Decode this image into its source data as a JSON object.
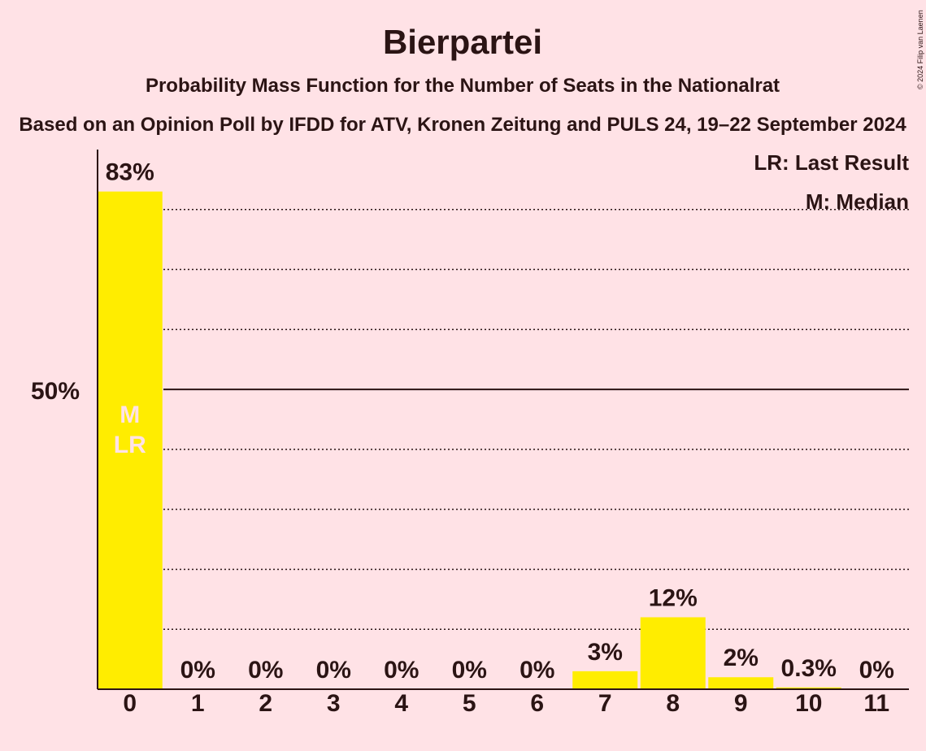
{
  "chart_data": {
    "type": "bar",
    "title": "Bierpartei",
    "subtitle": "Probability Mass Function for the Number of Seats in the Nationalrat",
    "subtitle2": "Based on an Opinion Poll by IFDD for ATV, Kronen Zeitung and PULS 24, 19–22 September 2024",
    "copyright": "© 2024 Filip van Laenen",
    "categories": [
      "0",
      "1",
      "2",
      "3",
      "4",
      "5",
      "6",
      "7",
      "8",
      "9",
      "10",
      "11"
    ],
    "values": [
      83,
      0,
      0,
      0,
      0,
      0,
      0,
      3,
      12,
      2,
      0.3,
      0
    ],
    "value_labels": [
      "83%",
      "0%",
      "0%",
      "0%",
      "0%",
      "0%",
      "0%",
      "3%",
      "12%",
      "2%",
      "0.3%",
      "0%"
    ],
    "ylim": [
      0,
      90
    ],
    "y_ticks": [
      {
        "value": 50,
        "label": "50%"
      }
    ],
    "gridlines": [
      10,
      20,
      30,
      40,
      60,
      70,
      80
    ],
    "median_line": 50,
    "bar_color": "#FFED00",
    "markers": [
      {
        "category": "0",
        "lines": [
          "M",
          "LR"
        ]
      }
    ],
    "legend": [
      "LR: Last Result",
      "M: Median"
    ],
    "legend_position": "top-right"
  }
}
